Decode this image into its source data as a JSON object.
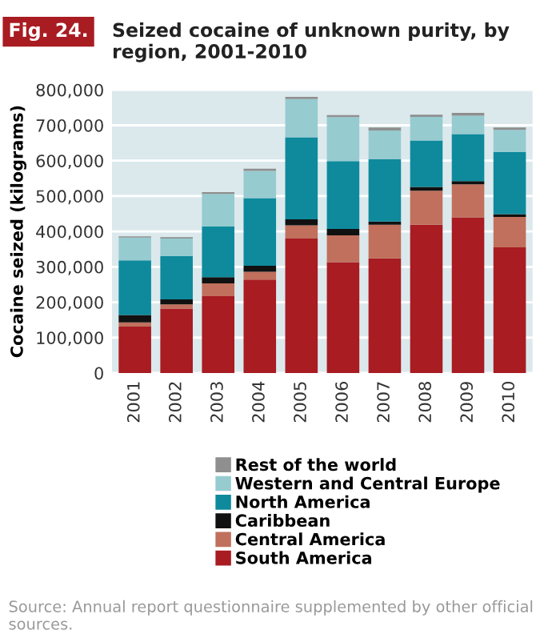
{
  "chart_data": {
    "type": "bar",
    "stacked": true,
    "title": "Seized cocaine of unknown purity, by region, 2001-2010",
    "ylabel": "Cocaine seized (kilograms)",
    "categories": [
      "2001",
      "2002",
      "2003",
      "2004",
      "2005",
      "2006",
      "2007",
      "2008",
      "2009",
      "2010"
    ],
    "series": [
      {
        "name": "South America",
        "color": "#a81c22",
        "values": [
          131000,
          182000,
          217000,
          264000,
          380000,
          313000,
          324000,
          419000,
          440000,
          355000
        ]
      },
      {
        "name": "Central America",
        "color": "#c0705c",
        "values": [
          12000,
          12000,
          36000,
          22000,
          37000,
          76000,
          95000,
          96000,
          93000,
          86000
        ]
      },
      {
        "name": "Caribbean",
        "color": "#111111",
        "values": [
          21000,
          14000,
          18000,
          17000,
          17000,
          18000,
          9000,
          11000,
          9000,
          8000
        ]
      },
      {
        "name": "North America",
        "color": "#0e8a9c",
        "values": [
          154000,
          123000,
          143000,
          191000,
          232000,
          192000,
          176000,
          131000,
          133000,
          176000
        ]
      },
      {
        "name": "Western and Central Europe",
        "color": "#96cbd0",
        "values": [
          65000,
          49000,
          92000,
          77000,
          108000,
          124000,
          81000,
          67000,
          52000,
          62000
        ]
      },
      {
        "name": "Rest of the world",
        "color": "#8f8f8f",
        "values": [
          3000,
          4000,
          5000,
          6000,
          6000,
          6000,
          9000,
          6000,
          8000,
          7000
        ]
      }
    ],
    "ylim": [
      0,
      800000
    ],
    "yticks": [
      0,
      {
        "value": 100000,
        "label": "100,000"
      },
      {
        "value": 200000,
        "label": "200,000"
      },
      {
        "value": 300000,
        "label": "300,000"
      },
      {
        "value": 400000,
        "label": "400,000"
      },
      {
        "value": 500000,
        "label": "500,000"
      },
      {
        "value": 600000,
        "label": "600,000"
      },
      {
        "value": 700000,
        "label": "700,000"
      },
      {
        "value": 800000,
        "label": "800,000"
      }
    ],
    "grid": "y",
    "legend": "bottom",
    "annotations": [
      "Fig. 24.",
      "Source: Annual report questionnaire supplemented by other official sources."
    ]
  }
}
